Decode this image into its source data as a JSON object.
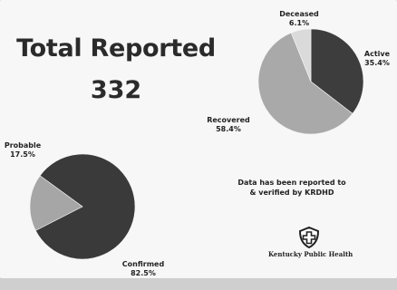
{
  "headline": {
    "title": "Total Reported",
    "total": "332"
  },
  "chart_data": [
    {
      "type": "pie",
      "slices": [
        {
          "label": "Active",
          "value_label": "35.4%",
          "value": 35.4,
          "color": "#3d3d3d"
        },
        {
          "label": "Recovered",
          "value_label": "58.4%",
          "value": 58.4,
          "color": "#a9a9a9"
        },
        {
          "label": "Deceased",
          "value_label": "6.1%",
          "value": 6.1,
          "color": "#dadada"
        }
      ]
    },
    {
      "type": "pie",
      "slices": [
        {
          "label": "Confirmed",
          "value_label": "82.5%",
          "value": 82.5,
          "color": "#3a3a3a"
        },
        {
          "label": "Probable",
          "value_label": "17.5%",
          "value": 17.5,
          "color": "#a6a6a6"
        }
      ]
    }
  ],
  "note": "Data has been reported to & verified by KRDHD",
  "logo": {
    "icon": "health-cross-shield-icon",
    "org": "Kentucky Public Health"
  }
}
